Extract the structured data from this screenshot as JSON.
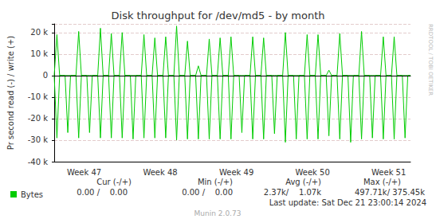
{
  "chart_data": {
    "type": "line",
    "title": "Disk throughput for /dev/md5 - by month",
    "y_label": "Pr second read (-) / write (+)",
    "categories": [
      null,
      null,
      null,
      null,
      null,
      null,
      null,
      null,
      null,
      null,
      null,
      "Week 47",
      null,
      null,
      null,
      null,
      null,
      null,
      null,
      null,
      null,
      null,
      null,
      null,
      null,
      null,
      null,
      null,
      null,
      null,
      null,
      null,
      null,
      null,
      null,
      null,
      null,
      null,
      null,
      "Week 48",
      null,
      null,
      null,
      null,
      null,
      null,
      null,
      null,
      null,
      null,
      null,
      null,
      null,
      null,
      null,
      null,
      null,
      null,
      null,
      null,
      null,
      null,
      null,
      null,
      null,
      null,
      null,
      "Week 49",
      null,
      null,
      null,
      null,
      null,
      null,
      null,
      null,
      null,
      null,
      null,
      null,
      null,
      null,
      null,
      null,
      null,
      null,
      null,
      null,
      null,
      null,
      null,
      null,
      null,
      null,
      null,
      "Week 50",
      null,
      null,
      null,
      null,
      null,
      null,
      null,
      null,
      null,
      null,
      null,
      null,
      null,
      null,
      null,
      null,
      null,
      null,
      null,
      null,
      null,
      null,
      null,
      null,
      null,
      null,
      null,
      "Week 51",
      null,
      null,
      null,
      null,
      null,
      null,
      null,
      null
    ],
    "series": [
      {
        "name": "Bytes",
        "color": "#00cc00",
        "values": [
          0,
          19000,
          0,
          0,
          0,
          0,
          0,
          0,
          0,
          20500,
          0,
          0,
          0,
          0,
          0,
          0,
          0,
          22000,
          0,
          0,
          0,
          19500,
          0,
          0,
          0,
          20000,
          0,
          0,
          0,
          0,
          0,
          0,
          0,
          19000,
          0,
          0,
          0,
          17500,
          0,
          0,
          0,
          18000,
          0,
          0,
          0,
          23000,
          0,
          0,
          0,
          16000,
          0,
          0,
          0,
          4500,
          0,
          0,
          0,
          17000,
          0,
          0,
          0,
          17500,
          0,
          0,
          0,
          18000,
          0,
          0,
          0,
          0,
          0,
          0,
          0,
          18000,
          0,
          0,
          0,
          17500,
          0,
          0,
          0,
          0,
          0,
          0,
          0,
          20000,
          0,
          0,
          0,
          0,
          0,
          0,
          0,
          19000,
          0,
          0,
          0,
          19000,
          0,
          0,
          0,
          2500,
          0,
          0,
          0,
          19500,
          0,
          0,
          0,
          0,
          0,
          0,
          0,
          20500,
          0,
          0,
          0,
          0,
          0,
          0,
          0,
          18000,
          0,
          0,
          0,
          18000,
          0,
          0,
          0,
          0,
          0,
          0
        ]
      },
      {
        "name": "Bytes",
        "color": "#00cc00",
        "values": [
          0,
          -29000,
          0,
          0,
          0,
          -26500,
          0,
          0,
          0,
          -29000,
          0,
          0,
          0,
          -26500,
          0,
          0,
          0,
          -29000,
          0,
          0,
          0,
          -29000,
          0,
          0,
          0,
          -29000,
          0,
          0,
          0,
          -29500,
          0,
          0,
          0,
          -29000,
          0,
          0,
          0,
          -29000,
          0,
          0,
          0,
          -29000,
          0,
          0,
          0,
          -30000,
          0,
          0,
          0,
          -29500,
          0,
          0,
          0,
          -29500,
          0,
          0,
          0,
          -29500,
          0,
          0,
          0,
          -29500,
          0,
          0,
          0,
          -29500,
          0,
          0,
          0,
          -26500,
          0,
          0,
          0,
          -29500,
          0,
          0,
          0,
          -29500,
          0,
          0,
          0,
          -27000,
          0,
          0,
          0,
          -31000,
          0,
          0,
          0,
          -29500,
          0,
          0,
          0,
          -29500,
          0,
          0,
          0,
          -29500,
          0,
          0,
          0,
          -28000,
          0,
          0,
          0,
          -29500,
          0,
          0,
          0,
          -31000,
          0,
          0,
          0,
          -29500,
          0,
          0,
          0,
          -29000,
          0,
          0,
          0,
          -29500,
          0,
          0,
          0,
          -29500,
          0,
          0,
          0,
          -29000,
          0,
          0
        ]
      }
    ],
    "ylim": [
      -40000,
      24000
    ],
    "yticks": [
      {
        "value": -40000,
        "label": "-40 k"
      },
      {
        "value": -30000,
        "label": "-30 k"
      },
      {
        "value": -20000,
        "label": "-20 k"
      },
      {
        "value": -10000,
        "label": "-10 k"
      },
      0,
      {
        "value": 10000,
        "label": "10 k"
      },
      {
        "value": 20000,
        "label": "20 k"
      }
    ],
    "grid": true,
    "legend": "lower left",
    "stats": {
      "headers": [
        "Cur (-/+)",
        "Min (-/+)",
        "Avg (-/+)",
        "Max (-/+)"
      ],
      "values": [
        "0.00 /    0.00",
        "0.00 /    0.00",
        "2.37k/    1.07k",
        "497.71k/ 375.45k"
      ]
    },
    "last_update": "Last update: Sat Dec 21 23:00:14 2024",
    "credit": "Munin 2.0.73",
    "watermark": "RRDTOOL / TOBI OETIKER"
  }
}
